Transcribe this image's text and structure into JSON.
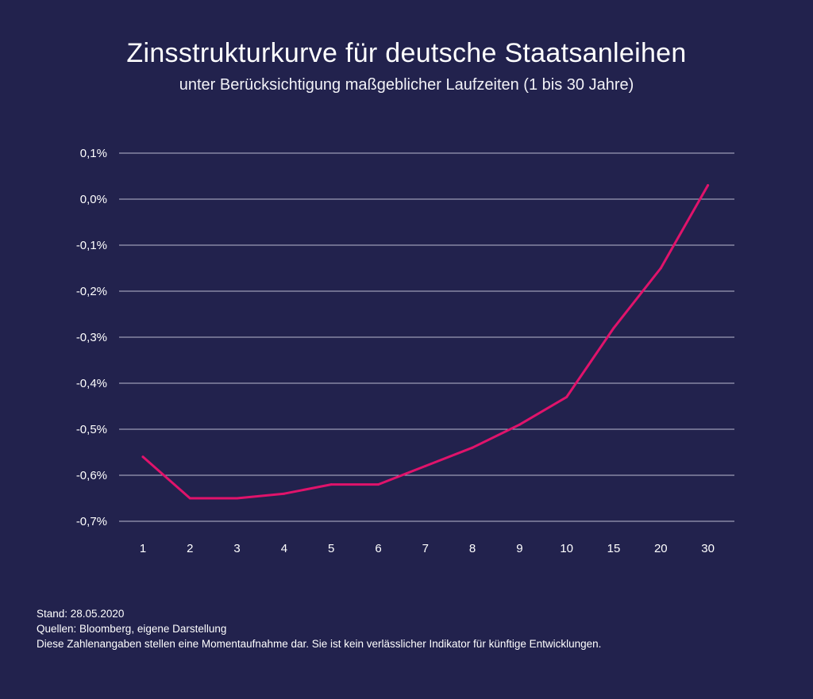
{
  "header": {
    "title": "Zinsstrukturkurve für deutsche Staatsanleihen",
    "subtitle": "unter Berücksichtigung maßgeblicher Laufzeiten (1 bis 30 Jahre)"
  },
  "footnotes": {
    "stand": "Stand: 28.05.2020",
    "quellen": "Quellen: Bloomberg, eigene Darstellung",
    "disclaimer": "Diese Zahlenangaben stellen eine Momentaufnahme dar. Sie ist kein verlässlicher Indikator für künftige Entwicklungen."
  },
  "colors": {
    "background": "#22224d",
    "line": "#e0136b",
    "grid": "#b9b9cf",
    "text": "#ffffff"
  },
  "chart_data": {
    "type": "line",
    "title": "Zinsstrukturkurve für deutsche Staatsanleihen",
    "subtitle": "unter Berücksichtigung maßgeblicher Laufzeiten (1 bis 30 Jahre)",
    "xlabel": "",
    "ylabel": "",
    "categories": [
      "1",
      "2",
      "3",
      "4",
      "5",
      "6",
      "7",
      "8",
      "9",
      "10",
      "15",
      "20",
      "30"
    ],
    "values": [
      -0.56,
      -0.65,
      -0.65,
      -0.64,
      -0.62,
      -0.62,
      -0.58,
      -0.54,
      -0.49,
      -0.43,
      -0.28,
      -0.15,
      0.03
    ],
    "ylim": [
      -0.7,
      0.1
    ],
    "yticks": [
      0.1,
      0.0,
      -0.1,
      -0.2,
      -0.3,
      -0.4,
      -0.5,
      -0.6,
      -0.7
    ],
    "ytick_labels": [
      "0,1%",
      "0,0%",
      "-0,1%",
      "-0,2%",
      "-0,3%",
      "-0,4%",
      "-0,5%",
      "-0,6%",
      "-0,7%"
    ],
    "grid": true,
    "legend": "none"
  }
}
